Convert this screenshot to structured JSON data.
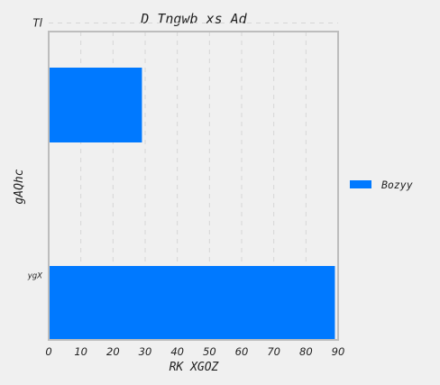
{
  "chart_data": {
    "type": "bar",
    "orientation": "horizontal",
    "title": "D Tngwb xs Ad",
    "xlabel": "RK XGOZ",
    "ylabel": "gAQhc",
    "categories": [
      "ygX",
      "Tl"
    ],
    "series": [
      {
        "name": "Bozyy",
        "values": [
          89,
          29
        ]
      }
    ],
    "xlim": [
      0,
      90
    ],
    "xticks": [
      "0",
      "10",
      "20",
      "30",
      "40",
      "50",
      "60",
      "70",
      "80",
      "90"
    ],
    "grid": true,
    "legend_position": "right",
    "colors": {
      "bar": "#0079ff",
      "frame": "#bdbdbd",
      "background": "#f0f0f0"
    }
  }
}
